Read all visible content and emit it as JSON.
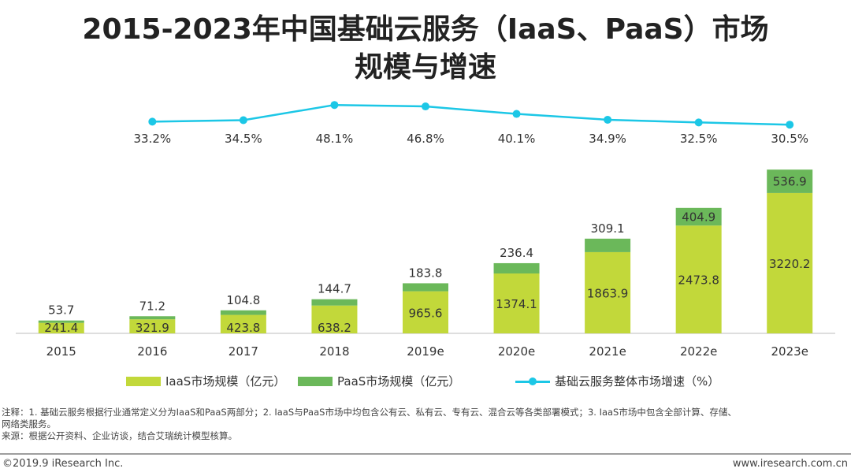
{
  "title_line1": "2015-2023年中国基础云服务（IaaS、PaaS）市场",
  "title_line2": "规模与增速",
  "chart_data": {
    "type": "bar",
    "stacked": true,
    "categories": [
      "2015",
      "2016",
      "2017",
      "2018",
      "2019e",
      "2020e",
      "2021e",
      "2022e",
      "2023e"
    ],
    "series": [
      {
        "name": "IaaS市场规模（亿元）",
        "values": [
          241.4,
          321.9,
          423.8,
          638.2,
          965.6,
          1374.1,
          1863.9,
          2473.8,
          3220.2
        ],
        "color": "#C2D83A"
      },
      {
        "name": "PaaS市场规模（亿元）",
        "values": [
          53.7,
          71.2,
          104.8,
          144.7,
          183.8,
          236.4,
          309.1,
          404.9,
          536.9
        ],
        "color": "#6BB85A"
      }
    ],
    "line_series": {
      "name": "基础云服务整体市场增速（%）",
      "values": [
        33.2,
        34.5,
        48.1,
        46.8,
        40.1,
        34.9,
        32.5,
        30.5
      ],
      "value_labels": [
        "33.2%",
        "34.5%",
        "48.1%",
        "46.8%",
        "40.1%",
        "34.9%",
        "32.5%",
        "30.5%"
      ],
      "categories": [
        "2016",
        "2017",
        "2018",
        "2019e",
        "2020e",
        "2021e",
        "2022e",
        "2023e"
      ],
      "color": "#1CC7E6"
    },
    "legend_position": "bottom",
    "grid": false
  },
  "notes": {
    "line1": "注释：1. 基础云服务根据行业通常定义分为IaaS和PaaS两部分；2. IaaS与PaaS市场中均包含公有云、私有云、专有云、混合云等各类部署模式；3. IaaS市场中包含全部计算、存储、",
    "line2": "网络类服务。",
    "line3": "来源：根据公开资料、企业访谈，结合艾瑞统计模型核算。"
  },
  "footer": {
    "left": "©2019.9 iResearch Inc.",
    "right": "www.iresearch.com.cn"
  }
}
